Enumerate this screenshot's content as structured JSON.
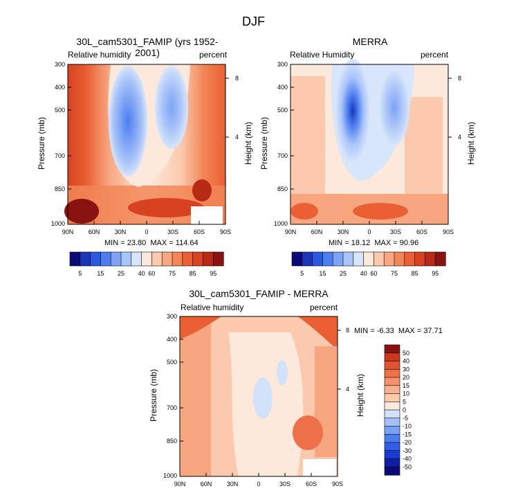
{
  "figure_title": "DJF",
  "colors": {
    "main_scale": [
      "#0b0b78",
      "#1b35b8",
      "#2c58e0",
      "#4d7ef0",
      "#7ea3f5",
      "#a9c4f8",
      "#d8e6fb",
      "#fde9dc",
      "#fbcaae",
      "#f7a680",
      "#f28657",
      "#ea5f33",
      "#d74321",
      "#b72a16",
      "#8a1210"
    ],
    "diff_scale": [
      "#0b0b78",
      "#0d1fa5",
      "#1a3bd0",
      "#2f5de8",
      "#4d7ef0",
      "#7aa0f4",
      "#a3c0f8",
      "#d2e2fb",
      "#fde9dc",
      "#fbcaae",
      "#f9b08e",
      "#f4906a",
      "#ee7048",
      "#e25330",
      "#c8361b",
      "#8a1210"
    ]
  },
  "chart_data": [
    {
      "type": "heatmap",
      "title": "30L_cam5301_FAMIP (yrs 1952-2001)",
      "left_label": "Relative humidity",
      "right_label": "percent",
      "ylabel": "Pressure (mb)",
      "ylabel_right": "Height (km)",
      "xticks": [
        "90N",
        "60N",
        "30N",
        "0",
        "30S",
        "60S",
        "90S"
      ],
      "yticks": [
        "300",
        "400",
        "500",
        "700",
        "850",
        "1000"
      ],
      "height_ticks": [
        "8",
        "4"
      ],
      "min_label": "MIN =",
      "min_value": "23.80",
      "max_label": "MAX =",
      "max_value": "114.64",
      "colorbar_labels": [
        "5",
        "15",
        "25",
        "40",
        "60",
        "75",
        "85",
        "95"
      ]
    },
    {
      "type": "heatmap",
      "title": "MERRA",
      "left_label": "Relative Humidity",
      "right_label": "percent",
      "ylabel": "Pressure (mb)",
      "ylabel_right": "Height (km)",
      "xticks": [
        "90N",
        "60N",
        "30N",
        "0",
        "30S",
        "60S",
        "90S"
      ],
      "yticks": [
        "300",
        "400",
        "500",
        "700",
        "850",
        "1000"
      ],
      "height_ticks": [
        "8",
        "4"
      ],
      "min_label": "MIN =",
      "min_value": "18.12",
      "max_label": "MAX =",
      "max_value": "90.96",
      "colorbar_labels": [
        "5",
        "15",
        "25",
        "40",
        "60",
        "75",
        "85",
        "95"
      ]
    },
    {
      "type": "heatmap",
      "title": "30L_cam5301_FAMIP - MERRA",
      "left_label": "Relative humidity",
      "right_label": "percent",
      "ylabel": "Pressure (mb)",
      "ylabel_right": "Height (km)",
      "xticks": [
        "90N",
        "60N",
        "30N",
        "0",
        "30S",
        "60S",
        "90S"
      ],
      "yticks": [
        "300",
        "400",
        "500",
        "700",
        "850",
        "1000"
      ],
      "height_ticks": [
        "8",
        "4"
      ],
      "min_label": "MIN =",
      "min_value": "-6.33",
      "max_label": "MAX =",
      "max_value": "37.71",
      "colorbar_labels": [
        "50",
        "40",
        "30",
        "20",
        "15",
        "10",
        "5",
        "0",
        "-5",
        "-10",
        "-15",
        "-20",
        "-30",
        "-40",
        "-50"
      ]
    }
  ]
}
